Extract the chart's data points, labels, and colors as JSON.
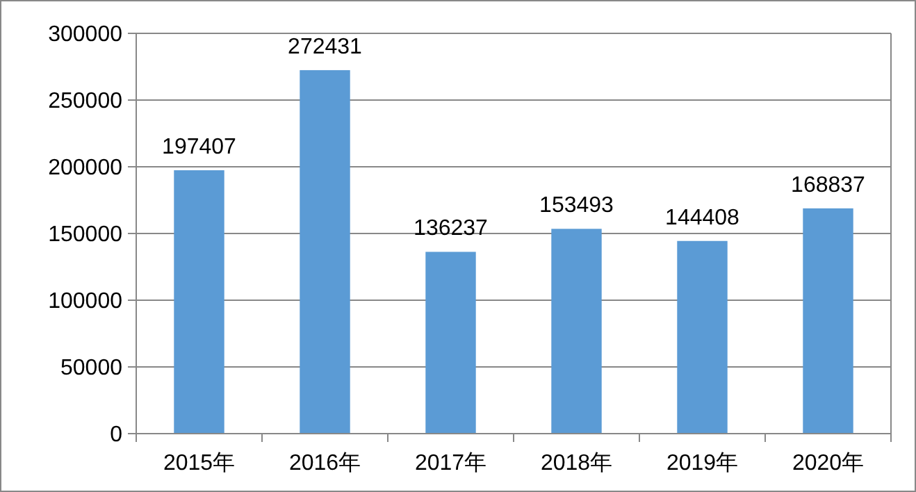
{
  "chart_data": {
    "type": "bar",
    "categories": [
      "2015年",
      "2016年",
      "2017年",
      "2018年",
      "2019年",
      "2020年"
    ],
    "values": [
      197407,
      272431,
      136237,
      153493,
      144408,
      168837
    ],
    "color": "#5b9bd5",
    "ylim": [
      0,
      300000
    ],
    "yticks": [
      0,
      50000,
      100000,
      150000,
      200000,
      250000,
      300000
    ],
    "grid": "y",
    "data_labels": true
  }
}
